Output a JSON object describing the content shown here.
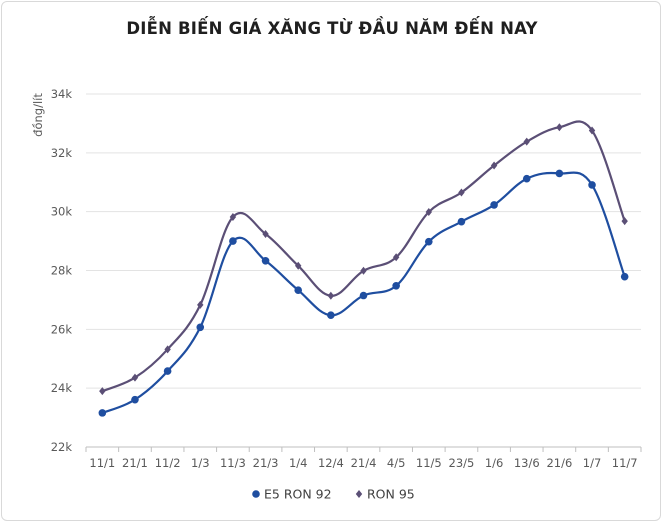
{
  "chart_data": {
    "type": "line",
    "title": "DIỄN BIẾN GIÁ XĂNG TỪ ĐẦU NĂM ĐẾN NAY",
    "xlabel": "",
    "ylabel": "đồng/lít",
    "categories": [
      "11/1",
      "21/1",
      "11/2",
      "1/3",
      "11/3",
      "21/3",
      "1/4",
      "12/4",
      "21/4",
      "4/5",
      "11/5",
      "23/5",
      "1/6",
      "13/6",
      "21/6",
      "1/7",
      "11/7"
    ],
    "yticks": [
      "22k",
      "24k",
      "26k",
      "28k",
      "30k",
      "32k",
      "34k"
    ],
    "ylim": [
      22000,
      34000
    ],
    "grid": true,
    "legend_position": "bottom",
    "series": [
      {
        "name": "E5 RON 92",
        "color": "#1f4ea0",
        "marker": "circle",
        "values": [
          23160,
          23610,
          24580,
          26070,
          29000,
          28330,
          27330,
          26480,
          27150,
          27480,
          28980,
          29660,
          30230,
          31120,
          31300,
          30910,
          27790
        ]
      },
      {
        "name": "RON 95",
        "color": "#5b4f76",
        "marker": "diamond",
        "values": [
          23900,
          24360,
          25320,
          26830,
          29820,
          29240,
          28160,
          27140,
          27990,
          28450,
          29990,
          30650,
          31570,
          32380,
          32870,
          32760,
          29680
        ]
      }
    ]
  }
}
